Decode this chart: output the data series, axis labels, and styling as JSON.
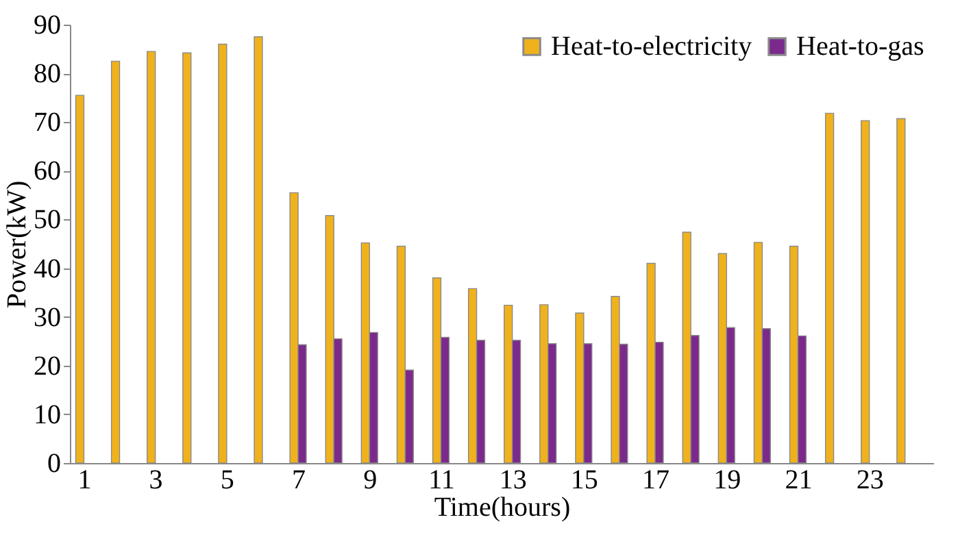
{
  "chart_data": {
    "type": "bar",
    "xlabel": "Time(hours)",
    "ylabel": "Power(kW)",
    "x": [
      1,
      2,
      3,
      4,
      5,
      6,
      7,
      8,
      9,
      10,
      11,
      12,
      13,
      14,
      15,
      16,
      17,
      18,
      19,
      20,
      21,
      22,
      23,
      24
    ],
    "xlim": [
      0.8,
      24.6
    ],
    "xticks": [
      1,
      3,
      5,
      7,
      9,
      11,
      13,
      15,
      17,
      19,
      21,
      23
    ],
    "series": [
      {
        "name": "Heat-to-electricity",
        "color": "#f0b21c",
        "values": [
          75.5,
          82.5,
          84.5,
          84.2,
          86,
          87.5,
          55.5,
          50.8,
          45.2,
          44.5,
          38,
          35.8,
          32.4,
          32.5,
          30.8,
          34.2,
          41,
          47.4,
          43,
          45.3,
          44.5,
          71.8,
          70.3,
          70.7
        ]
      },
      {
        "name": "Heat-to-gas",
        "color": "#7b2a8c",
        "values": [
          null,
          null,
          null,
          null,
          null,
          null,
          24.3,
          25.5,
          26.8,
          19.1,
          25.8,
          25.2,
          25.2,
          24.5,
          24.5,
          24.4,
          24.8,
          26.2,
          27.8,
          27.6,
          26.1,
          null,
          null,
          null
        ]
      }
    ],
    "ylim": [
      0,
      90
    ],
    "yticks": [
      0,
      10,
      20,
      30,
      40,
      50,
      60,
      70,
      80,
      90
    ],
    "grid": false,
    "legend": "top right"
  }
}
